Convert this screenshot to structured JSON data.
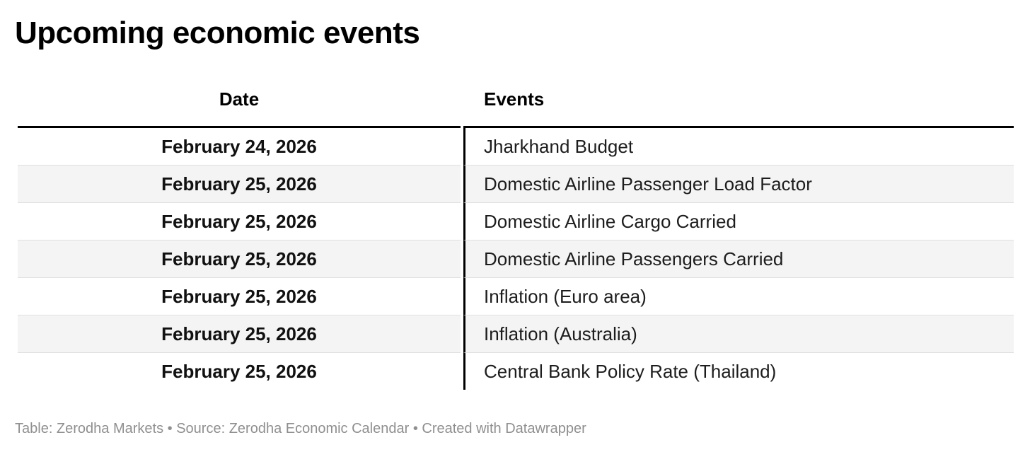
{
  "title": "Upcoming economic events",
  "table": {
    "columns": [
      {
        "label": "Date"
      },
      {
        "label": "Events"
      }
    ],
    "rows": [
      {
        "date": "February 24, 2026",
        "event": "Jharkhand Budget"
      },
      {
        "date": "February 25, 2026",
        "event": "Domestic Airline Passenger Load Factor"
      },
      {
        "date": "February 25, 2026",
        "event": "Domestic Airline Cargo Carried"
      },
      {
        "date": "February 25, 2026",
        "event": "Domestic Airline Passengers Carried"
      },
      {
        "date": "February 25, 2026",
        "event": "Inflation (Euro area)"
      },
      {
        "date": "February 25, 2026",
        "event": "Inflation (Australia)"
      },
      {
        "date": "February 25, 2026",
        "event": "Central Bank Policy Rate (Thailand)"
      }
    ]
  },
  "footer": {
    "text": "Table: Zerodha Markets • Source: Zerodha Economic Calendar • Created with Datawrapper"
  },
  "colors": {
    "title_text": "#000000",
    "body_text": "#1d1d1d",
    "rule_black": "#000000",
    "stripe_gray": "#f4f4f4",
    "row_separator": "#e0e0e0",
    "footer_gray": "#8f8f8f",
    "background": "#ffffff"
  }
}
